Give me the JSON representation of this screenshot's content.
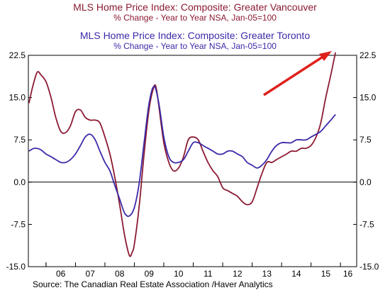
{
  "titles": {
    "vancouver_title": "MLS Home Price Index: Composite: Greater Vancouver",
    "vancouver_sub": "% Change - Year to Year   NSA, Jan-05=100",
    "toronto_title": "MLS Home Price Index: Composite: Greater Toronto",
    "toronto_sub": "% Change - Year to Year   NSA, Jan-05=100"
  },
  "source": "Source:  The Canadian Real Estate Association /Haver Analytics",
  "colors": {
    "vancouver": "#8b1a32",
    "toronto": "#3a2aa8",
    "arrow": "#e0201b",
    "zero_line": "#000000"
  },
  "chart_data": {
    "type": "line",
    "title": "",
    "xlabel": "",
    "ylabel": "",
    "xlim": [
      2005.4,
      2016.55
    ],
    "ylim": [
      -15,
      22.5
    ],
    "yticks": [
      22.5,
      15.0,
      7.5,
      0.0,
      -7.5,
      -15.0
    ],
    "ytick_labels": [
      "22.5",
      "15.0",
      "7.5",
      "0.0",
      "-7.5",
      "-15.0"
    ],
    "xtick_labels": [
      "06",
      "07",
      "08",
      "09",
      "10",
      "11",
      "12",
      "13",
      "14",
      "15",
      "16"
    ],
    "grid": false,
    "legend": "titles-top",
    "annotation": "red-arrow-pointing-to-vancouver-peak",
    "series": [
      {
        "id": "vancouver",
        "x": [
          2005.42,
          2005.55,
          2005.7,
          2005.83,
          2006.0,
          2006.17,
          2006.33,
          2006.5,
          2006.67,
          2006.83,
          2007.0,
          2007.17,
          2007.33,
          2007.5,
          2007.67,
          2007.83,
          2008.0,
          2008.17,
          2008.33,
          2008.5,
          2008.67,
          2008.83,
          2008.92,
          2009.0,
          2009.17,
          2009.33,
          2009.5,
          2009.67,
          2009.75,
          2009.83,
          2010.0,
          2010.17,
          2010.33,
          2010.5,
          2010.67,
          2010.83,
          2011.0,
          2011.17,
          2011.33,
          2011.5,
          2011.67,
          2011.83,
          2012.0,
          2012.17,
          2012.33,
          2012.5,
          2012.67,
          2012.83,
          2013.0,
          2013.17,
          2013.33,
          2013.5,
          2013.67,
          2013.83,
          2014.0,
          2014.17,
          2014.33,
          2014.5,
          2014.67,
          2014.83,
          2015.0,
          2015.17,
          2015.33,
          2015.5,
          2015.67,
          2015.83
        ],
        "y": [
          14.0,
          17.0,
          19.5,
          19.0,
          17.8,
          15.0,
          11.5,
          9.0,
          8.8,
          10.0,
          12.5,
          12.8,
          11.5,
          11.0,
          11.0,
          10.5,
          8.0,
          5.0,
          1.0,
          -4.0,
          -9.5,
          -13.0,
          -12.5,
          -11.0,
          -4.0,
          5.0,
          13.0,
          17.0,
          16.5,
          13.5,
          7.0,
          3.5,
          2.0,
          2.5,
          4.5,
          7.5,
          8.0,
          7.5,
          5.5,
          3.5,
          2.0,
          1.0,
          -1.0,
          -1.5,
          -2.0,
          -2.5,
          -3.5,
          -4.0,
          -3.5,
          -1.0,
          1.5,
          3.5,
          3.5,
          4.0,
          4.5,
          5.0,
          5.5,
          5.5,
          6.0,
          6.0,
          6.5,
          8.0,
          10.5,
          15.0,
          19.0,
          23.0
        ]
      },
      {
        "id": "toronto",
        "x": [
          2005.42,
          2005.6,
          2005.8,
          2006.0,
          2006.17,
          2006.33,
          2006.5,
          2006.67,
          2006.83,
          2007.0,
          2007.17,
          2007.33,
          2007.5,
          2007.67,
          2007.83,
          2008.0,
          2008.17,
          2008.33,
          2008.5,
          2008.67,
          2008.83,
          2009.0,
          2009.17,
          2009.33,
          2009.5,
          2009.67,
          2009.83,
          2010.0,
          2010.17,
          2010.33,
          2010.5,
          2010.67,
          2010.83,
          2011.0,
          2011.17,
          2011.33,
          2011.5,
          2011.67,
          2011.83,
          2012.0,
          2012.17,
          2012.33,
          2012.5,
          2012.67,
          2012.83,
          2013.0,
          2013.17,
          2013.33,
          2013.5,
          2013.67,
          2013.83,
          2014.0,
          2014.17,
          2014.33,
          2014.5,
          2014.67,
          2014.83,
          2015.0,
          2015.17,
          2015.33,
          2015.5,
          2015.67,
          2015.83
        ],
        "y": [
          5.5,
          6.0,
          5.8,
          5.0,
          4.5,
          4.0,
          3.5,
          3.5,
          4.0,
          5.0,
          6.5,
          8.0,
          8.5,
          7.5,
          5.5,
          3.5,
          2.0,
          -0.5,
          -3.0,
          -5.5,
          -6.0,
          -4.5,
          0.0,
          7.0,
          14.0,
          17.0,
          14.0,
          8.0,
          4.5,
          3.5,
          3.5,
          4.0,
          5.5,
          7.0,
          7.0,
          6.5,
          6.0,
          5.5,
          5.0,
          5.0,
          5.5,
          5.5,
          5.0,
          4.5,
          3.5,
          3.0,
          2.5,
          3.0,
          4.0,
          5.5,
          6.5,
          7.0,
          7.0,
          7.0,
          7.5,
          7.5,
          7.5,
          8.0,
          8.5,
          9.0,
          10.0,
          11.0,
          12.0
        ]
      }
    ]
  }
}
